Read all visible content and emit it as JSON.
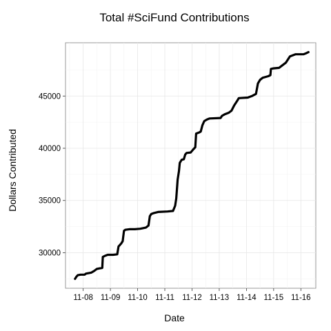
{
  "chart_data": {
    "type": "line",
    "title": "Total #SciFund Contributions",
    "xlabel": "Date",
    "ylabel": "Dollars Contributed",
    "x_ticks": [
      "11-08",
      "11-09",
      "11-10",
      "11-11",
      "11-12",
      "11-13",
      "11-14",
      "11-15",
      "11-16"
    ],
    "y_ticks": [
      30000,
      35000,
      40000,
      45000
    ],
    "xlim": [
      7.35,
      16.55
    ],
    "ylim": [
      26600,
      50100
    ],
    "grid": true,
    "series": [
      {
        "color": "#000000",
        "points": [
          [
            7.7,
            27500
          ],
          [
            7.75,
            27700
          ],
          [
            7.8,
            27850
          ],
          [
            7.9,
            27900
          ],
          [
            8.05,
            27900
          ],
          [
            8.1,
            28000
          ],
          [
            8.3,
            28100
          ],
          [
            8.4,
            28250
          ],
          [
            8.5,
            28450
          ],
          [
            8.6,
            28500
          ],
          [
            8.7,
            28550
          ],
          [
            8.72,
            29600
          ],
          [
            8.8,
            29700
          ],
          [
            8.9,
            29800
          ],
          [
            9.1,
            29800
          ],
          [
            9.25,
            29850
          ],
          [
            9.3,
            30600
          ],
          [
            9.4,
            30900
          ],
          [
            9.45,
            31100
          ],
          [
            9.5,
            32100
          ],
          [
            9.55,
            32200
          ],
          [
            9.7,
            32250
          ],
          [
            9.9,
            32250
          ],
          [
            10.1,
            32300
          ],
          [
            10.3,
            32400
          ],
          [
            10.4,
            32600
          ],
          [
            10.45,
            33500
          ],
          [
            10.5,
            33700
          ],
          [
            10.6,
            33800
          ],
          [
            10.75,
            33900
          ],
          [
            11.1,
            33950
          ],
          [
            11.3,
            34000
          ],
          [
            11.38,
            34500
          ],
          [
            11.42,
            35200
          ],
          [
            11.47,
            37000
          ],
          [
            11.52,
            37800
          ],
          [
            11.55,
            38600
          ],
          [
            11.62,
            38900
          ],
          [
            11.7,
            38950
          ],
          [
            11.75,
            39400
          ],
          [
            11.8,
            39550
          ],
          [
            11.95,
            39600
          ],
          [
            12.05,
            39900
          ],
          [
            12.12,
            40100
          ],
          [
            12.15,
            41400
          ],
          [
            12.25,
            41500
          ],
          [
            12.32,
            41600
          ],
          [
            12.38,
            42200
          ],
          [
            12.45,
            42600
          ],
          [
            12.55,
            42750
          ],
          [
            12.65,
            42850
          ],
          [
            13.05,
            42900
          ],
          [
            13.1,
            43100
          ],
          [
            13.2,
            43250
          ],
          [
            13.35,
            43400
          ],
          [
            13.45,
            43600
          ],
          [
            13.55,
            44100
          ],
          [
            13.65,
            44500
          ],
          [
            13.72,
            44800
          ],
          [
            14.05,
            44850
          ],
          [
            14.2,
            45000
          ],
          [
            14.35,
            45200
          ],
          [
            14.42,
            46200
          ],
          [
            14.5,
            46550
          ],
          [
            14.6,
            46750
          ],
          [
            14.8,
            46900
          ],
          [
            14.88,
            47000
          ],
          [
            14.9,
            47600
          ],
          [
            15.0,
            47650
          ],
          [
            15.2,
            47700
          ],
          [
            15.3,
            47900
          ],
          [
            15.45,
            48200
          ],
          [
            15.6,
            48800
          ],
          [
            15.8,
            49000
          ],
          [
            16.1,
            49000
          ],
          [
            16.2,
            49100
          ],
          [
            16.28,
            49200
          ]
        ]
      }
    ]
  }
}
